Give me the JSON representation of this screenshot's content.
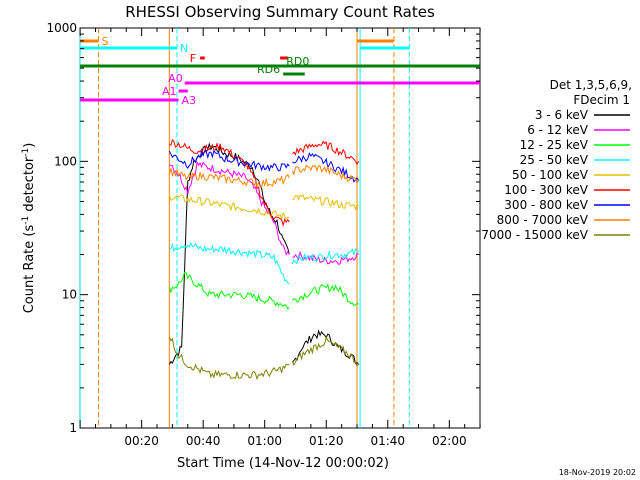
{
  "chart_data": {
    "type": "line",
    "title": "RHESSI Observing Summary Count Rates",
    "xlabel": "Start Time (14-Nov-12 00:00:02)",
    "ylabel_main": "Count Rate (s",
    "ylabel_sup1": "-1",
    "ylabel_mid": " detector",
    "ylabel_sup2": "-1",
    "ylabel_end": ")",
    "y_scale": "log",
    "xlim_minutes": [
      -0.03,
      129.97
    ],
    "ylim": [
      1,
      1000
    ],
    "x_ticks": [
      {
        "t": 20,
        "label": "00:20"
      },
      {
        "t": 40,
        "label": "00:40"
      },
      {
        "t": 60,
        "label": "01:00"
      },
      {
        "t": 80,
        "label": "01:20"
      },
      {
        "t": 100,
        "label": "01:40"
      },
      {
        "t": 120,
        "label": "02:00"
      }
    ],
    "y_ticks": [
      {
        "v": 1,
        "label": "1"
      },
      {
        "v": 10,
        "label": "10"
      },
      {
        "v": 100,
        "label": "100"
      },
      {
        "v": 1000,
        "label": "1000"
      }
    ],
    "legend_title_1": "Det 1,3,5,6,9,",
    "legend_title_2": "FDecim 1",
    "legend_placement": "right",
    "timestamp": "18-Nov-2019 20:02",
    "series": [
      {
        "name": "3 - 6 keV",
        "color": "#000000",
        "segments": [
          {
            "t": [
              29,
              31,
              33,
              35,
              37,
              40,
              43,
              47,
              50,
              53,
              56,
              58,
              60,
              62,
              64,
              66,
              68
            ],
            "v": [
              3,
              3.5,
              4,
              70,
              100,
              120,
              130,
              115,
              110,
              100,
              90,
              70,
              50,
              40,
              35,
              25,
              20
            ]
          },
          {
            "t": [
              69,
              72,
              76,
              80,
              84,
              88,
              90.5
            ],
            "v": [
              3,
              4,
              5,
              5,
              4,
              3.5,
              3
            ]
          }
        ]
      },
      {
        "name": "6 - 12 keV",
        "color": "#ff00ff",
        "segments": [
          {
            "t": [
              29,
              32,
              35,
              38,
              42,
              46,
              50,
              54,
              57,
              60,
              63,
              66,
              68
            ],
            "v": [
              100,
              80,
              60,
              95,
              90,
              85,
              80,
              75,
              60,
              45,
              35,
              22,
              20
            ]
          },
          {
            "t": [
              69,
              74,
              79,
              84,
              88,
              90.5
            ],
            "v": [
              20,
              19,
              18,
              18,
              19,
              20
            ]
          }
        ]
      },
      {
        "name": "12 - 25 keV",
        "color": "#00ff00",
        "segments": [
          {
            "t": [
              29,
              32,
              34,
              38,
              42,
              47,
              52,
              57,
              62,
              66,
              68
            ],
            "v": [
              11,
              12,
              14,
              12,
              10,
              10,
              10,
              9.5,
              9,
              8.5,
              8
            ]
          },
          {
            "t": [
              69,
              73,
              78,
              83,
              88,
              90.5
            ],
            "v": [
              9,
              10,
              11,
              11.5,
              9,
              8.5
            ]
          }
        ]
      },
      {
        "name": "25 - 50 keV",
        "color": "#00ffff",
        "segments": [
          {
            "t": [
              29,
              34,
              40,
              46,
              52,
              58,
              63,
              66,
              68
            ],
            "v": [
              22,
              24,
              22,
              22,
              21,
              20,
              19,
              14,
              12
            ]
          },
          {
            "t": [
              69,
              73,
              77,
              82,
              86,
              90.5
            ],
            "v": [
              18,
              19,
              19,
              20,
              20,
              21
            ]
          }
        ]
      },
      {
        "name": "50 - 100 keV",
        "color": "#e0c000",
        "segments": [
          {
            "t": [
              29,
              34,
              40,
              46,
              52,
              58,
              63,
              68
            ],
            "v": [
              55,
              52,
              50,
              47,
              45,
              43,
              40,
              38
            ]
          },
          {
            "t": [
              69,
              74,
              80,
              85,
              90.5
            ],
            "v": [
              55,
              52,
              50,
              47,
              46
            ]
          }
        ]
      },
      {
        "name": "100 - 300 keV",
        "color": "#ff0000",
        "segments": [
          {
            "t": [
              29,
              32,
              35,
              38,
              42,
              46,
              50,
              54,
              57,
              60,
              63,
              66,
              68
            ],
            "v": [
              140,
              135,
              125,
              120,
              125,
              130,
              110,
              95,
              70,
              48,
              38,
              35,
              35
            ]
          },
          {
            "t": [
              69,
              73,
              77,
              81,
              84,
              87,
              90.5
            ],
            "v": [
              115,
              125,
              135,
              130,
              120,
              110,
              100
            ]
          }
        ]
      },
      {
        "name": "300 - 800 keV",
        "color": "#0000ff",
        "segments": [
          {
            "t": [
              29,
              32,
              35,
              39,
              43,
              47,
              51,
              55,
              59,
              62,
              65,
              68
            ],
            "v": [
              115,
              105,
              95,
              110,
              115,
              105,
              100,
              95,
              92,
              90,
              90,
              92
            ]
          },
          {
            "t": [
              69,
              72,
              75,
              79,
              83,
              87,
              90.5
            ],
            "v": [
              100,
              105,
              110,
              100,
              90,
              80,
              72
            ]
          }
        ]
      },
      {
        "name": "800 - 7000 keV",
        "color": "#ff8000",
        "segments": [
          {
            "t": [
              29,
              32,
              35,
              39,
              43,
              47,
              51,
              55,
              59,
              63,
              66,
              68
            ],
            "v": [
              85,
              80,
              75,
              78,
              76,
              74,
              72,
              70,
              68,
              70,
              72,
              75
            ]
          },
          {
            "t": [
              69,
              73,
              77,
              81,
              85,
              90.5
            ],
            "v": [
              85,
              88,
              90,
              85,
              78,
              72
            ]
          }
        ]
      },
      {
        "name": "7000 - 15000 keV",
        "color": "#808000",
        "segments": [
          {
            "t": [
              29,
              32,
              35,
              38,
              42,
              47,
              52,
              57,
              62,
              66,
              68
            ],
            "v": [
              5,
              3.5,
              3,
              2.8,
              2.5,
              2.5,
              2.5,
              2.5,
              2.6,
              2.8,
              3
            ]
          },
          {
            "t": [
              69,
              72,
              76,
              80,
              84,
              88,
              90.5
            ],
            "v": [
              3,
              3.5,
              4,
              4.5,
              4,
              3.5,
              3
            ]
          }
        ]
      }
    ],
    "vertical_lines": [
      {
        "t": 0,
        "color": "#00ffff",
        "style": "solid"
      },
      {
        "t": 6,
        "color": "#ff8000",
        "style": "dashed"
      },
      {
        "t": 29,
        "color": "#ff8000",
        "style": "solid"
      },
      {
        "t": 31.5,
        "color": "#00ffff",
        "style": "dashed"
      },
      {
        "t": 90,
        "color": "#ff8000",
        "style": "solid"
      },
      {
        "t": 91,
        "color": "#00ffff",
        "style": "solid"
      },
      {
        "t": 102,
        "color": "#ff8000",
        "style": "dashed"
      },
      {
        "t": 107,
        "color": "#00ffff",
        "style": "dashed"
      }
    ],
    "flag_bars": [
      {
        "label": "S",
        "color": "#ff8000",
        "t0": 0,
        "t1": 6,
        "level": 1
      },
      {
        "label": "",
        "color": "#ff8000",
        "t0": 90,
        "t1": 102,
        "level": 1
      },
      {
        "label": "N",
        "color": "#00ffff",
        "t0": 0,
        "t1": 31.5,
        "level": 2
      },
      {
        "label": "",
        "color": "#00ffff",
        "t0": 91,
        "t1": 107,
        "level": 2
      },
      {
        "label": "F",
        "color": "#ff0000",
        "t0": 39,
        "t1": 40.5,
        "level": 3
      },
      {
        "label": "",
        "color": "#ff0000",
        "t0": 65,
        "t1": 67.5,
        "level": 3
      },
      {
        "label": "RD0",
        "color": "#008000",
        "t0": 0,
        "t1": 130,
        "level": 4
      },
      {
        "label": "RD6",
        "color": "#008000",
        "t0": 66,
        "t1": 73,
        "level": 5
      },
      {
        "label": "A0",
        "color": "#ff00ff",
        "t0": 34,
        "t1": 130,
        "level": 6
      },
      {
        "label": "A1",
        "color": "#ff00ff",
        "t0": 32,
        "t1": 35,
        "level": 7
      },
      {
        "label": "A3",
        "color": "#ff00ff",
        "t0": 0,
        "t1": 32,
        "level": 8
      }
    ]
  }
}
